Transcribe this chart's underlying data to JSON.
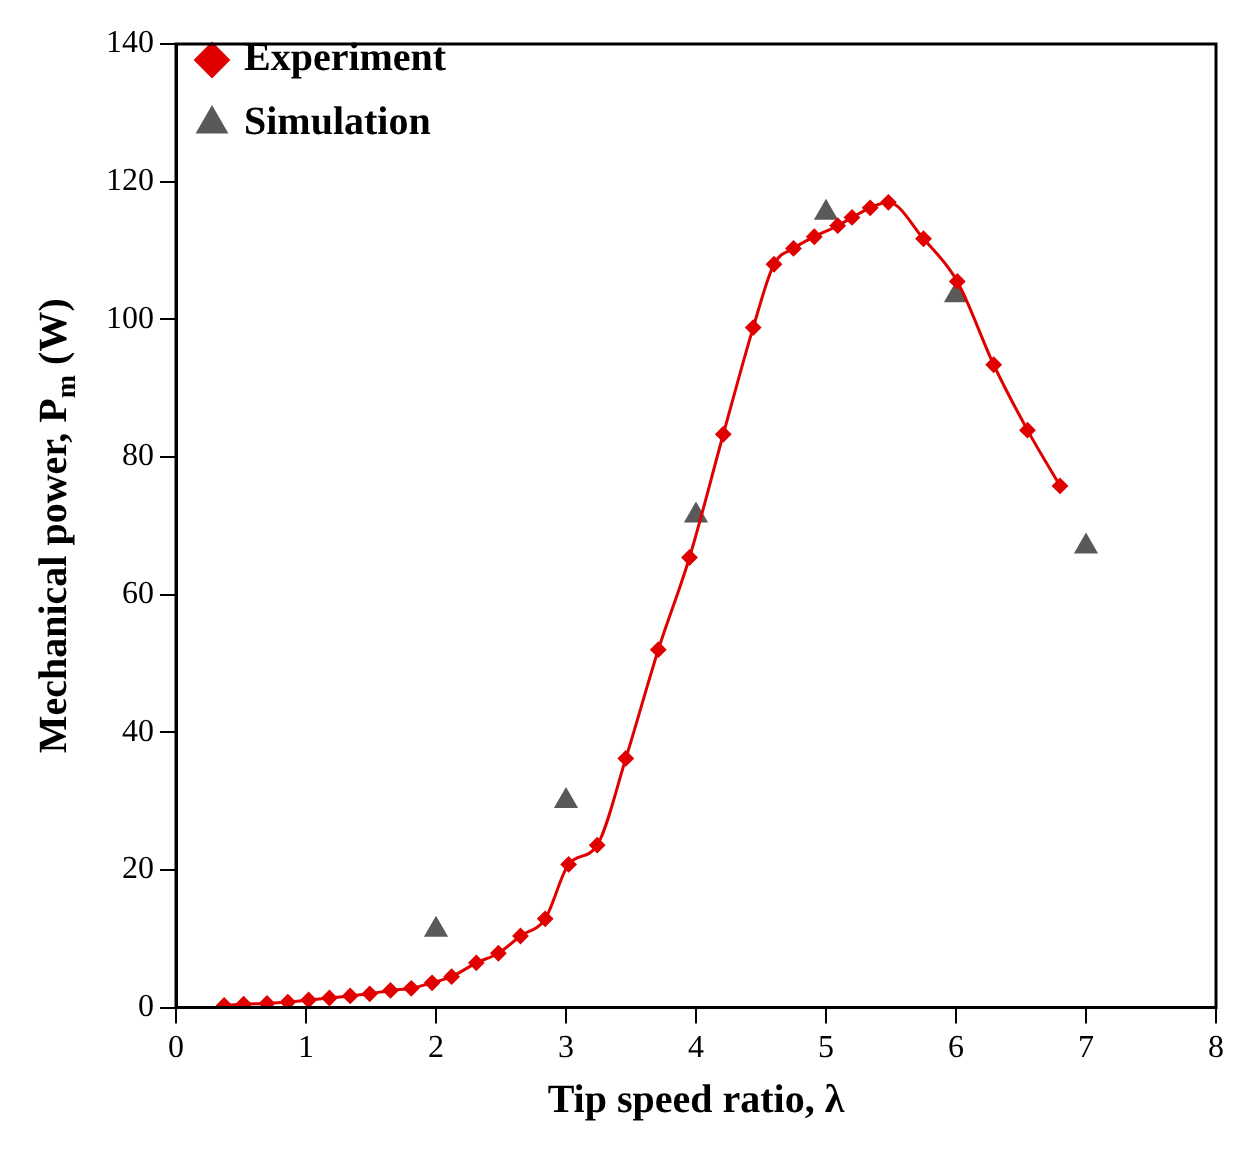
{
  "chart_data": {
    "type": "line",
    "xlabel": "Tip speed ratio, λ",
    "ylabel": "Mechanical power, P$_{m}$ (W)",
    "xlim": [
      0,
      8
    ],
    "xticks": [
      0,
      1,
      2,
      3,
      4,
      5,
      6,
      7,
      8
    ],
    "ylim": [
      0,
      140
    ],
    "yticks": [
      0,
      20,
      40,
      60,
      80,
      100,
      120,
      140
    ],
    "grid": false,
    "legend": "top left",
    "series": [
      {
        "name": "Experiment",
        "color": "#e00000",
        "marker": "diamond",
        "x": [
          0.37,
          0.52,
          0.7,
          0.86,
          1.02,
          1.18,
          1.34,
          1.49,
          1.65,
          1.81,
          1.97,
          2.12,
          2.31,
          2.48,
          2.65,
          2.84,
          3.02,
          3.24,
          3.46,
          3.71,
          3.95,
          4.21,
          4.44,
          4.6,
          4.75,
          4.91,
          5.09,
          5.2,
          5.34,
          5.48,
          5.75,
          6.01,
          6.29,
          6.55,
          6.8
        ],
        "values": [
          0.3,
          0.5,
          0.6,
          0.8,
          1.1,
          1.4,
          1.7,
          2.0,
          2.5,
          2.8,
          3.6,
          4.5,
          6.5,
          7.9,
          10.4,
          12.9,
          20.8,
          23.6,
          36.2,
          52,
          65.4,
          83.3,
          98.8,
          108,
          110.3,
          112,
          113.6,
          114.8,
          116.2,
          117,
          111.7,
          105.5,
          93.4,
          83.9,
          75.8
        ]
      },
      {
        "name": "Simulation",
        "type": "scatter",
        "color": "#595959",
        "marker": "triangle",
        "x": [
          2,
          3,
          4,
          5,
          6,
          7
        ],
        "values": [
          11.3,
          30,
          71.5,
          115.5,
          103.5,
          67
        ]
      }
    ]
  }
}
